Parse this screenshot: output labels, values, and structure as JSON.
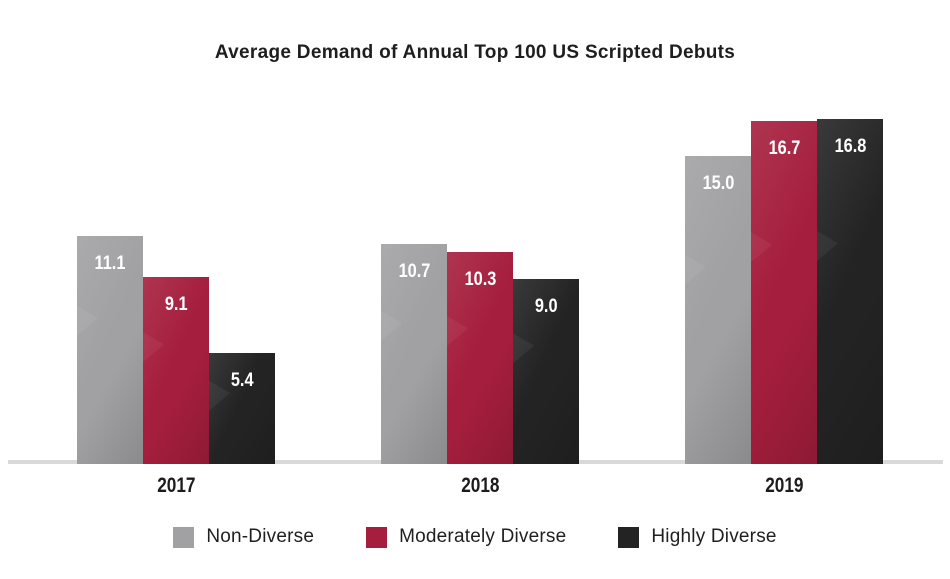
{
  "chart_data": {
    "type": "bar",
    "title": "Average Demand of Annual Top 100 US Scripted Debuts",
    "categories": [
      "2017",
      "2018",
      "2019"
    ],
    "series": [
      {
        "name": "Non-Diverse",
        "color": "#a1a1a3",
        "values": [
          11.1,
          10.7,
          15.0
        ],
        "value_labels": [
          "11.1",
          "10.7",
          "15.0"
        ]
      },
      {
        "name": "Moderately Diverse",
        "color": "#a51e3d",
        "values": [
          9.1,
          10.3,
          16.7
        ],
        "value_labels": [
          "9.1",
          "10.3",
          "16.7"
        ]
      },
      {
        "name": "Highly Diverse",
        "color": "#232323",
        "values": [
          5.4,
          9.0,
          16.8
        ],
        "value_labels": [
          "5.4",
          "9.0",
          "16.8"
        ]
      }
    ],
    "ylim": [
      0,
      18.2
    ],
    "grid": false,
    "y_axis_visible": false,
    "legend_position": "bottom",
    "value_label_color": "#ffffff",
    "axis_line_color": "#d9d9d9",
    "title_color": "#1e1e1e",
    "category_label_color": "#1c1c1c",
    "background_color": "#ffffff"
  }
}
